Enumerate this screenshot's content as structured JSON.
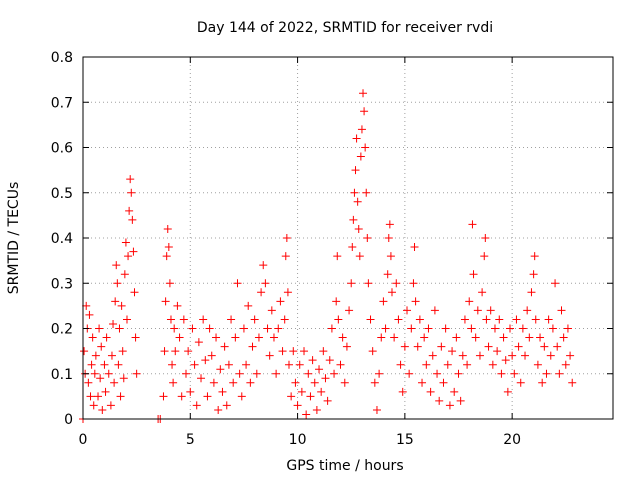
{
  "chart_data": {
    "type": "scatter",
    "title": "Day 144 of 2022, SRMTID for receiver rvdi",
    "xlabel": "GPS time / hours",
    "ylabel": "SRMTID / TECUs",
    "xlim": [
      0,
      24.7
    ],
    "ylim": [
      0,
      0.8
    ],
    "xticks": [
      "0",
      "5",
      "10",
      "15",
      "20"
    ],
    "xtick_values": [
      0,
      5,
      10,
      15,
      20
    ],
    "yticks": [
      "0",
      "0.1",
      "0.2",
      "0.3",
      "0.4",
      "0.5",
      "0.6",
      "0.7",
      "0.8"
    ],
    "ytick_values": [
      0,
      0.1,
      0.2,
      0.3,
      0.4,
      0.5,
      0.6,
      0.7,
      0.8
    ],
    "grid": true,
    "marker": "+",
    "series_color": "#ff0000",
    "series": [
      {
        "name": "SRMTID",
        "points": [
          [
            0.0,
            0.0
          ],
          [
            0.05,
            0.15
          ],
          [
            0.1,
            0.1
          ],
          [
            0.15,
            0.25
          ],
          [
            0.2,
            0.2
          ],
          [
            0.25,
            0.08
          ],
          [
            0.3,
            0.23
          ],
          [
            0.35,
            0.05
          ],
          [
            0.4,
            0.12
          ],
          [
            0.45,
            0.18
          ],
          [
            0.5,
            0.03
          ],
          [
            0.55,
            0.1
          ],
          [
            0.6,
            0.14
          ],
          [
            0.7,
            0.05
          ],
          [
            0.75,
            0.2
          ],
          [
            0.8,
            0.09
          ],
          [
            0.85,
            0.16
          ],
          [
            0.9,
            0.02
          ],
          [
            1.0,
            0.12
          ],
          [
            1.05,
            0.06
          ],
          [
            1.1,
            0.18
          ],
          [
            1.2,
            0.1
          ],
          [
            1.3,
            0.03
          ],
          [
            1.35,
            0.14
          ],
          [
            1.4,
            0.21
          ],
          [
            1.45,
            0.08
          ],
          [
            1.5,
            0.26
          ],
          [
            1.55,
            0.34
          ],
          [
            1.6,
            0.3
          ],
          [
            1.65,
            0.12
          ],
          [
            1.7,
            0.2
          ],
          [
            1.75,
            0.05
          ],
          [
            1.8,
            0.25
          ],
          [
            1.85,
            0.15
          ],
          [
            1.9,
            0.09
          ],
          [
            1.95,
            0.32
          ],
          [
            2.0,
            0.39
          ],
          [
            2.05,
            0.22
          ],
          [
            2.1,
            0.36
          ],
          [
            2.15,
            0.46
          ],
          [
            2.2,
            0.53
          ],
          [
            2.25,
            0.5
          ],
          [
            2.3,
            0.44
          ],
          [
            2.35,
            0.37
          ],
          [
            2.4,
            0.28
          ],
          [
            2.45,
            0.18
          ],
          [
            2.5,
            0.1
          ],
          [
            3.5,
            0.0
          ],
          [
            3.6,
            0.0
          ],
          [
            3.75,
            0.05
          ],
          [
            3.8,
            0.15
          ],
          [
            3.85,
            0.26
          ],
          [
            3.9,
            0.36
          ],
          [
            3.95,
            0.42
          ],
          [
            4.0,
            0.38
          ],
          [
            4.05,
            0.3
          ],
          [
            4.1,
            0.22
          ],
          [
            4.15,
            0.12
          ],
          [
            4.2,
            0.08
          ],
          [
            4.25,
            0.2
          ],
          [
            4.3,
            0.15
          ],
          [
            4.4,
            0.25
          ],
          [
            4.5,
            0.18
          ],
          [
            4.6,
            0.05
          ],
          [
            4.7,
            0.22
          ],
          [
            4.8,
            0.1
          ],
          [
            4.9,
            0.15
          ],
          [
            5.0,
            0.06
          ],
          [
            5.1,
            0.2
          ],
          [
            5.2,
            0.12
          ],
          [
            5.3,
            0.03
          ],
          [
            5.4,
            0.17
          ],
          [
            5.5,
            0.09
          ],
          [
            5.6,
            0.22
          ],
          [
            5.7,
            0.13
          ],
          [
            5.8,
            0.05
          ],
          [
            5.9,
            0.2
          ],
          [
            6.0,
            0.14
          ],
          [
            6.1,
            0.08
          ],
          [
            6.2,
            0.18
          ],
          [
            6.3,
            0.02
          ],
          [
            6.4,
            0.11
          ],
          [
            6.5,
            0.06
          ],
          [
            6.6,
            0.16
          ],
          [
            6.7,
            0.03
          ],
          [
            6.8,
            0.12
          ],
          [
            6.9,
            0.22
          ],
          [
            7.0,
            0.08
          ],
          [
            7.1,
            0.18
          ],
          [
            7.2,
            0.3
          ],
          [
            7.3,
            0.1
          ],
          [
            7.4,
            0.05
          ],
          [
            7.5,
            0.2
          ],
          [
            7.6,
            0.12
          ],
          [
            7.7,
            0.25
          ],
          [
            7.8,
            0.08
          ],
          [
            7.9,
            0.16
          ],
          [
            8.0,
            0.22
          ],
          [
            8.1,
            0.1
          ],
          [
            8.2,
            0.18
          ],
          [
            8.3,
            0.28
          ],
          [
            8.4,
            0.34
          ],
          [
            8.5,
            0.3
          ],
          [
            8.6,
            0.2
          ],
          [
            8.7,
            0.14
          ],
          [
            8.8,
            0.24
          ],
          [
            8.9,
            0.18
          ],
          [
            9.0,
            0.1
          ],
          [
            9.1,
            0.2
          ],
          [
            9.2,
            0.26
          ],
          [
            9.3,
            0.15
          ],
          [
            9.4,
            0.22
          ],
          [
            9.45,
            0.36
          ],
          [
            9.5,
            0.4
          ],
          [
            9.55,
            0.28
          ],
          [
            9.6,
            0.12
          ],
          [
            9.7,
            0.05
          ],
          [
            9.8,
            0.15
          ],
          [
            9.9,
            0.08
          ],
          [
            10.0,
            0.03
          ],
          [
            10.1,
            0.12
          ],
          [
            10.2,
            0.06
          ],
          [
            10.3,
            0.15
          ],
          [
            10.4,
            0.01
          ],
          [
            10.5,
            0.1
          ],
          [
            10.6,
            0.05
          ],
          [
            10.7,
            0.13
          ],
          [
            10.8,
            0.08
          ],
          [
            10.9,
            0.02
          ],
          [
            11.0,
            0.11
          ],
          [
            11.1,
            0.06
          ],
          [
            11.2,
            0.15
          ],
          [
            11.3,
            0.09
          ],
          [
            11.4,
            0.04
          ],
          [
            11.5,
            0.13
          ],
          [
            11.6,
            0.2
          ],
          [
            11.7,
            0.1
          ],
          [
            11.8,
            0.26
          ],
          [
            11.85,
            0.36
          ],
          [
            11.9,
            0.22
          ],
          [
            12.0,
            0.12
          ],
          [
            12.1,
            0.18
          ],
          [
            12.2,
            0.08
          ],
          [
            12.3,
            0.16
          ],
          [
            12.4,
            0.24
          ],
          [
            12.5,
            0.3
          ],
          [
            12.55,
            0.38
          ],
          [
            12.6,
            0.44
          ],
          [
            12.65,
            0.5
          ],
          [
            12.7,
            0.55
          ],
          [
            12.75,
            0.62
          ],
          [
            12.8,
            0.48
          ],
          [
            12.85,
            0.42
          ],
          [
            12.9,
            0.36
          ],
          [
            12.95,
            0.58
          ],
          [
            13.0,
            0.64
          ],
          [
            13.05,
            0.72
          ],
          [
            13.1,
            0.68
          ],
          [
            13.15,
            0.6
          ],
          [
            13.2,
            0.5
          ],
          [
            13.25,
            0.4
          ],
          [
            13.3,
            0.3
          ],
          [
            13.4,
            0.22
          ],
          [
            13.5,
            0.15
          ],
          [
            13.6,
            0.08
          ],
          [
            13.7,
            0.02
          ],
          [
            13.8,
            0.1
          ],
          [
            13.9,
            0.18
          ],
          [
            14.0,
            0.26
          ],
          [
            14.1,
            0.2
          ],
          [
            14.2,
            0.32
          ],
          [
            14.25,
            0.4
          ],
          [
            14.3,
            0.43
          ],
          [
            14.35,
            0.36
          ],
          [
            14.4,
            0.28
          ],
          [
            14.5,
            0.18
          ],
          [
            14.6,
            0.3
          ],
          [
            14.7,
            0.22
          ],
          [
            14.8,
            0.12
          ],
          [
            14.9,
            0.06
          ],
          [
            15.0,
            0.16
          ],
          [
            15.1,
            0.24
          ],
          [
            15.2,
            0.1
          ],
          [
            15.3,
            0.2
          ],
          [
            15.4,
            0.3
          ],
          [
            15.45,
            0.38
          ],
          [
            15.5,
            0.26
          ],
          [
            15.6,
            0.16
          ],
          [
            15.7,
            0.22
          ],
          [
            15.8,
            0.08
          ],
          [
            15.9,
            0.18
          ],
          [
            16.0,
            0.12
          ],
          [
            16.1,
            0.2
          ],
          [
            16.2,
            0.06
          ],
          [
            16.3,
            0.14
          ],
          [
            16.4,
            0.24
          ],
          [
            16.5,
            0.1
          ],
          [
            16.6,
            0.04
          ],
          [
            16.7,
            0.16
          ],
          [
            16.8,
            0.08
          ],
          [
            16.9,
            0.2
          ],
          [
            17.0,
            0.12
          ],
          [
            17.1,
            0.03
          ],
          [
            17.2,
            0.15
          ],
          [
            17.3,
            0.06
          ],
          [
            17.4,
            0.18
          ],
          [
            17.5,
            0.1
          ],
          [
            17.6,
            0.04
          ],
          [
            17.7,
            0.14
          ],
          [
            17.8,
            0.22
          ],
          [
            17.9,
            0.12
          ],
          [
            18.0,
            0.26
          ],
          [
            18.1,
            0.2
          ],
          [
            18.15,
            0.43
          ],
          [
            18.2,
            0.32
          ],
          [
            18.3,
            0.18
          ],
          [
            18.4,
            0.24
          ],
          [
            18.5,
            0.14
          ],
          [
            18.6,
            0.28
          ],
          [
            18.7,
            0.36
          ],
          [
            18.75,
            0.4
          ],
          [
            18.8,
            0.22
          ],
          [
            18.9,
            0.16
          ],
          [
            19.0,
            0.24
          ],
          [
            19.1,
            0.12
          ],
          [
            19.2,
            0.2
          ],
          [
            19.3,
            0.15
          ],
          [
            19.4,
            0.22
          ],
          [
            19.5,
            0.1
          ],
          [
            19.6,
            0.18
          ],
          [
            19.7,
            0.13
          ],
          [
            19.8,
            0.06
          ],
          [
            19.9,
            0.2
          ],
          [
            20.0,
            0.14
          ],
          [
            20.1,
            0.1
          ],
          [
            20.2,
            0.22
          ],
          [
            20.3,
            0.16
          ],
          [
            20.4,
            0.08
          ],
          [
            20.5,
            0.2
          ],
          [
            20.6,
            0.14
          ],
          [
            20.7,
            0.24
          ],
          [
            20.8,
            0.18
          ],
          [
            20.9,
            0.28
          ],
          [
            21.0,
            0.32
          ],
          [
            21.05,
            0.36
          ],
          [
            21.1,
            0.22
          ],
          [
            21.2,
            0.12
          ],
          [
            21.3,
            0.18
          ],
          [
            21.4,
            0.08
          ],
          [
            21.5,
            0.16
          ],
          [
            21.6,
            0.1
          ],
          [
            21.7,
            0.22
          ],
          [
            21.8,
            0.14
          ],
          [
            21.9,
            0.2
          ],
          [
            22.0,
            0.3
          ],
          [
            22.1,
            0.16
          ],
          [
            22.2,
            0.1
          ],
          [
            22.3,
            0.24
          ],
          [
            22.4,
            0.18
          ],
          [
            22.5,
            0.12
          ],
          [
            22.6,
            0.2
          ],
          [
            22.7,
            0.14
          ],
          [
            22.8,
            0.08
          ]
        ]
      }
    ]
  }
}
